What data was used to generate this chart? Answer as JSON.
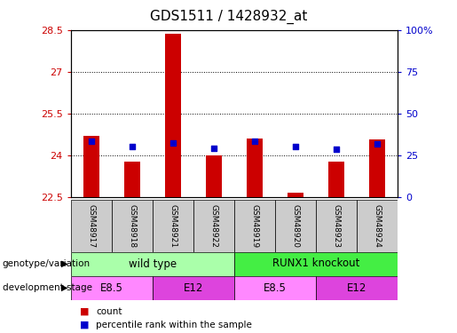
{
  "title": "GDS1511 / 1428932_at",
  "samples": [
    "GSM48917",
    "GSM48918",
    "GSM48921",
    "GSM48922",
    "GSM48919",
    "GSM48920",
    "GSM48923",
    "GSM48924"
  ],
  "bar_values": [
    24.7,
    23.75,
    28.35,
    24.0,
    24.6,
    22.65,
    23.75,
    24.55
  ],
  "dot_values": [
    24.5,
    24.3,
    24.45,
    24.25,
    24.5,
    24.3,
    24.2,
    24.4
  ],
  "ylim_left": [
    22.5,
    28.5
  ],
  "ylim_right": [
    0,
    100
  ],
  "yticks_left": [
    22.5,
    24.0,
    25.5,
    27.0,
    28.5
  ],
  "yticks_right": [
    0,
    25,
    50,
    75,
    100
  ],
  "ytick_labels_left": [
    "22.5",
    "24",
    "25.5",
    "27",
    "28.5"
  ],
  "ytick_labels_right": [
    "0",
    "25",
    "50",
    "75",
    "100%"
  ],
  "bar_color": "#cc0000",
  "dot_color": "#0000cc",
  "bar_bottom": 22.5,
  "genotype_groups": [
    {
      "label": "wild type",
      "start": 0,
      "end": 4,
      "color": "#aaffaa"
    },
    {
      "label": "RUNX1 knockout",
      "start": 4,
      "end": 8,
      "color": "#44ee44"
    }
  ],
  "dev_stage_groups": [
    {
      "label": "E8.5",
      "start": 0,
      "end": 2,
      "color": "#ff88ff"
    },
    {
      "label": "E12",
      "start": 2,
      "end": 4,
      "color": "#dd44dd"
    },
    {
      "label": "E8.5",
      "start": 4,
      "end": 6,
      "color": "#ff88ff"
    },
    {
      "label": "E12",
      "start": 6,
      "end": 8,
      "color": "#dd44dd"
    }
  ],
  "sample_bg_color": "#cccccc",
  "legend_count_color": "#cc0000",
  "legend_percentile_color": "#0000cc",
  "background_color": "#ffffff",
  "plot_bg_color": "#ffffff",
  "label_row1": "genotype/variation",
  "label_row2": "development stage",
  "legend_count_label": "count",
  "legend_percentile_label": "percentile rank within the sample",
  "grid_yticks": [
    24.0,
    25.5,
    27.0
  ]
}
